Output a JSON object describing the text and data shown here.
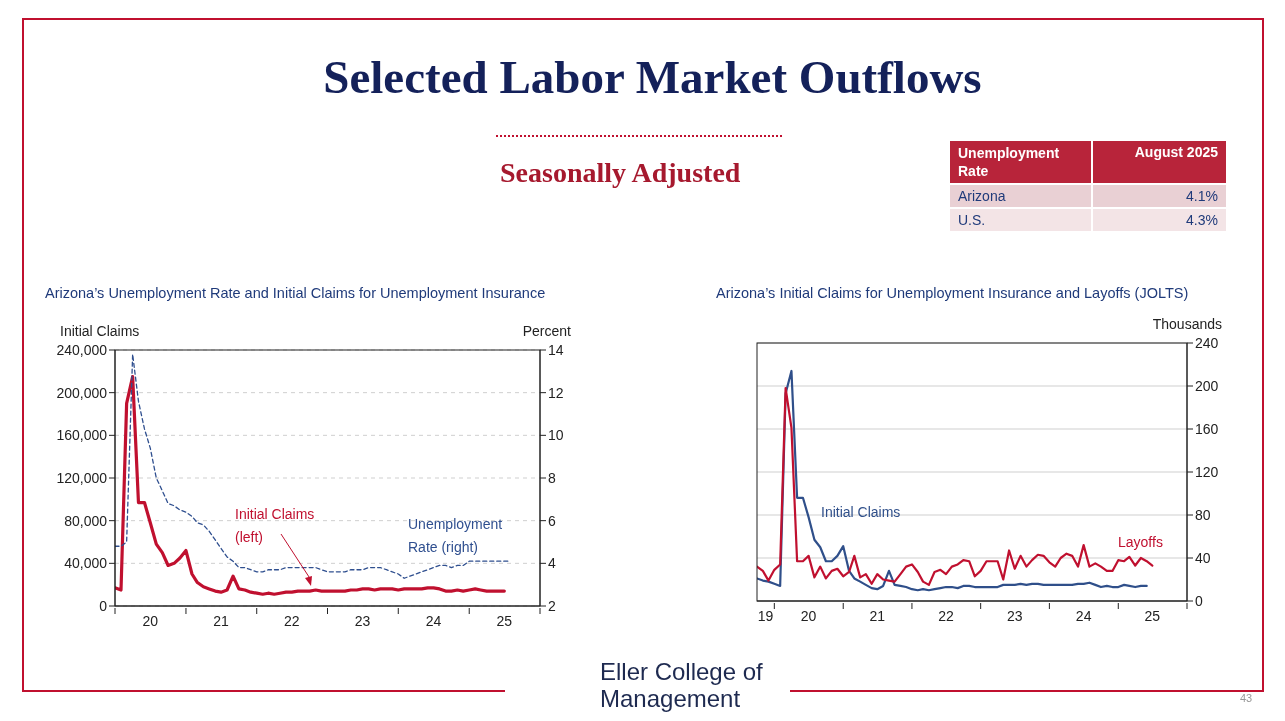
{
  "chart_data": [
    {
      "type": "other",
      "title": "Selected Labor Market Outflows",
      "subtitle": "Seasonally Adjusted",
      "annotations": [
        "Unemployment Rate",
        "August 2025",
        "Arizona",
        "4.1%",
        "U.S.",
        "4.3%",
        "Eller College of Management",
        "43"
      ]
    },
    {
      "type": "line",
      "title": "Arizona’s Unemployment Rate and Initial Claims for Unemployment Insurance",
      "ylabel": "Initial Claims",
      "y2label": "Percent",
      "x": [
        "2020-01",
        "2020-02",
        "2020-03",
        "2020-04",
        "2020-05",
        "2020-06",
        "2020-07",
        "2020-08",
        "2020-09",
        "2020-10",
        "2020-11",
        "2020-12",
        "2021-01",
        "2021-02",
        "2021-03",
        "2021-04",
        "2021-05",
        "2021-06",
        "2021-07",
        "2021-08",
        "2021-09",
        "2021-10",
        "2021-11",
        "2021-12",
        "2022-01",
        "2022-02",
        "2022-03",
        "2022-04",
        "2022-05",
        "2022-06",
        "2022-07",
        "2022-08",
        "2022-09",
        "2022-10",
        "2022-11",
        "2022-12",
        "2023-01",
        "2023-02",
        "2023-03",
        "2023-04",
        "2023-05",
        "2023-06",
        "2023-07",
        "2023-08",
        "2023-09",
        "2023-10",
        "2023-11",
        "2023-12",
        "2024-01",
        "2024-02",
        "2024-03",
        "2024-04",
        "2024-05",
        "2024-06",
        "2024-07",
        "2024-08",
        "2024-09",
        "2024-10",
        "2024-11",
        "2024-12",
        "2025-01",
        "2025-02",
        "2025-03",
        "2025-04",
        "2025-05",
        "2025-06",
        "2025-07",
        "2025-08"
      ],
      "xlim": [
        "2020-01",
        "2026-01"
      ],
      "xticks": [
        {
          "value": "2020-01",
          "label": null
        },
        {
          "value": "2020-07",
          "label": "20"
        },
        {
          "value": "2021-01",
          "label": null
        },
        {
          "value": "2021-07",
          "label": "21"
        },
        {
          "value": "2022-01",
          "label": null
        },
        {
          "value": "2022-07",
          "label": "22"
        },
        {
          "value": "2023-01",
          "label": null
        },
        {
          "value": "2023-07",
          "label": "23"
        },
        {
          "value": "2024-01",
          "label": null
        },
        {
          "value": "2024-07",
          "label": "24"
        },
        {
          "value": "2025-01",
          "label": null
        },
        {
          "value": "2025-07",
          "label": "25"
        },
        {
          "value": "2026-01",
          "label": null
        }
      ],
      "ylim": [
        0,
        240000
      ],
      "yticks": [
        0,
        {
          "value": 40000,
          "label": "40,000"
        },
        {
          "value": 80000,
          "label": "80,000"
        },
        {
          "value": 120000,
          "label": "120,000"
        },
        {
          "value": 160000,
          "label": "160,000"
        },
        {
          "value": 200000,
          "label": "200,000"
        },
        {
          "value": 240000,
          "label": "240,000"
        }
      ],
      "y2lim": [
        2,
        14
      ],
      "y2ticks": [
        2,
        4,
        6,
        8,
        10,
        12,
        14
      ],
      "grid": "y",
      "legend": false,
      "series": [
        {
          "name": "Initial Claims (left)",
          "color": "#c0102f",
          "values": [
            17000,
            15000,
            190000,
            215000,
            97000,
            97000,
            78000,
            58000,
            50000,
            38000,
            40000,
            45000,
            52000,
            30000,
            22000,
            18000,
            16000,
            14000,
            13000,
            15000,
            28000,
            16000,
            15000,
            13000,
            12000,
            11000,
            12000,
            11000,
            12000,
            13000,
            13000,
            14000,
            14000,
            14000,
            15000,
            14000,
            14000,
            14000,
            14000,
            14000,
            15000,
            15000,
            16000,
            16000,
            15000,
            16000,
            16000,
            16000,
            15000,
            16000,
            16000,
            16000,
            16000,
            17000,
            17000,
            16000,
            14000,
            14000,
            15000,
            14000,
            15000,
            16000,
            15000,
            14000,
            14000,
            14000,
            14000,
            null
          ]
        },
        {
          "name": "Unemployment Rate (right)",
          "color": "#2f4f8f",
          "axis": "y2",
          "line_style": "dashed",
          "values": [
            4.8,
            4.8,
            5.0,
            13.8,
            11.6,
            10.3,
            9.4,
            8.0,
            7.4,
            6.8,
            6.7,
            6.5,
            6.4,
            6.2,
            5.9,
            5.8,
            5.5,
            5.1,
            4.7,
            4.3,
            4.1,
            3.8,
            3.8,
            3.7,
            3.6,
            3.6,
            3.7,
            3.7,
            3.7,
            3.8,
            3.8,
            3.8,
            3.8,
            3.8,
            3.8,
            3.7,
            3.6,
            3.6,
            3.6,
            3.6,
            3.7,
            3.7,
            3.7,
            3.8,
            3.8,
            3.8,
            3.7,
            3.6,
            3.5,
            3.3,
            3.4,
            3.5,
            3.6,
            3.7,
            3.8,
            3.9,
            3.9,
            3.8,
            3.9,
            3.9,
            4.1,
            4.1,
            4.1,
            4.1,
            4.1,
            4.1,
            4.1,
            4.1
          ]
        }
      ]
    },
    {
      "type": "line",
      "title": "Arizona’s Initial Claims for Unemployment Insurance and Layoffs (JOLTS)",
      "y2label": "Thousands",
      "x": [
        "2019-10",
        "2019-11",
        "2019-12",
        "2020-01",
        "2020-02",
        "2020-03",
        "2020-04",
        "2020-05",
        "2020-06",
        "2020-07",
        "2020-08",
        "2020-09",
        "2020-10",
        "2020-11",
        "2020-12",
        "2021-01",
        "2021-02",
        "2021-03",
        "2021-04",
        "2021-05",
        "2021-06",
        "2021-07",
        "2021-08",
        "2021-09",
        "2021-10",
        "2021-11",
        "2021-12",
        "2022-01",
        "2022-02",
        "2022-03",
        "2022-04",
        "2022-05",
        "2022-06",
        "2022-07",
        "2022-08",
        "2022-09",
        "2022-10",
        "2022-11",
        "2022-12",
        "2023-01",
        "2023-02",
        "2023-03",
        "2023-04",
        "2023-05",
        "2023-06",
        "2023-07",
        "2023-08",
        "2023-09",
        "2023-10",
        "2023-11",
        "2023-12",
        "2024-01",
        "2024-02",
        "2024-03",
        "2024-04",
        "2024-05",
        "2024-06",
        "2024-07",
        "2024-08",
        "2024-09",
        "2024-10",
        "2024-11",
        "2024-12",
        "2025-01",
        "2025-02",
        "2025-03",
        "2025-04",
        "2025-05",
        "2025-06",
        "2025-07"
      ],
      "xlim": [
        "2019-10",
        "2026-01"
      ],
      "xticks": [
        {
          "value": "2019-11-15",
          "label": "19"
        },
        {
          "value": "2020-01",
          "label": null
        },
        {
          "value": "2020-07",
          "label": "20"
        },
        {
          "value": "2021-01",
          "label": null
        },
        {
          "value": "2021-07",
          "label": "21"
        },
        {
          "value": "2022-01",
          "label": null
        },
        {
          "value": "2022-07",
          "label": "22"
        },
        {
          "value": "2023-01",
          "label": null
        },
        {
          "value": "2023-07",
          "label": "23"
        },
        {
          "value": "2024-01",
          "label": null
        },
        {
          "value": "2024-07",
          "label": "24"
        },
        {
          "value": "2025-01",
          "label": null
        },
        {
          "value": "2025-07",
          "label": "25"
        },
        {
          "value": "2026-01",
          "label": null
        }
      ],
      "y2lim": [
        0,
        240
      ],
      "y2ticks": [
        0,
        40,
        80,
        120,
        160,
        200,
        240
      ],
      "grid": "y",
      "legend": false,
      "series": [
        {
          "name": "Initial Claims",
          "color": "#2f4f8a",
          "axis": "y2",
          "values": [
            21,
            19,
            18,
            16,
            14,
            193,
            214,
            96,
            96,
            78,
            57,
            50,
            37,
            37,
            42,
            51,
            28,
            21,
            18,
            15,
            12,
            11,
            14,
            28,
            15,
            14,
            13,
            11,
            10,
            11,
            10,
            11,
            12,
            13,
            13,
            12,
            14,
            14,
            13,
            13,
            13,
            13,
            13,
            15,
            15,
            15,
            16,
            15,
            16,
            16,
            15,
            15,
            15,
            15,
            15,
            15,
            16,
            16,
            17,
            15,
            13,
            14,
            13,
            13,
            15,
            14,
            13,
            14,
            14,
            null
          ]
        },
        {
          "name": "Layoffs",
          "color": "#c0102f",
          "axis": "y2",
          "values": [
            32,
            28,
            19,
            29,
            34,
            198,
            161,
            37,
            37,
            42,
            22,
            32,
            21,
            28,
            30,
            23,
            27,
            42,
            22,
            25,
            16,
            25,
            20,
            19,
            18,
            25,
            32,
            34,
            27,
            18,
            15,
            27,
            29,
            25,
            32,
            34,
            38,
            37,
            23,
            28,
            37,
            37,
            37,
            20,
            47,
            30,
            42,
            32,
            38,
            43,
            42,
            36,
            32,
            40,
            44,
            42,
            32,
            52,
            32,
            35,
            32,
            28,
            28,
            38,
            37,
            41,
            33,
            40,
            37,
            33
          ]
        }
      ]
    }
  ]
}
